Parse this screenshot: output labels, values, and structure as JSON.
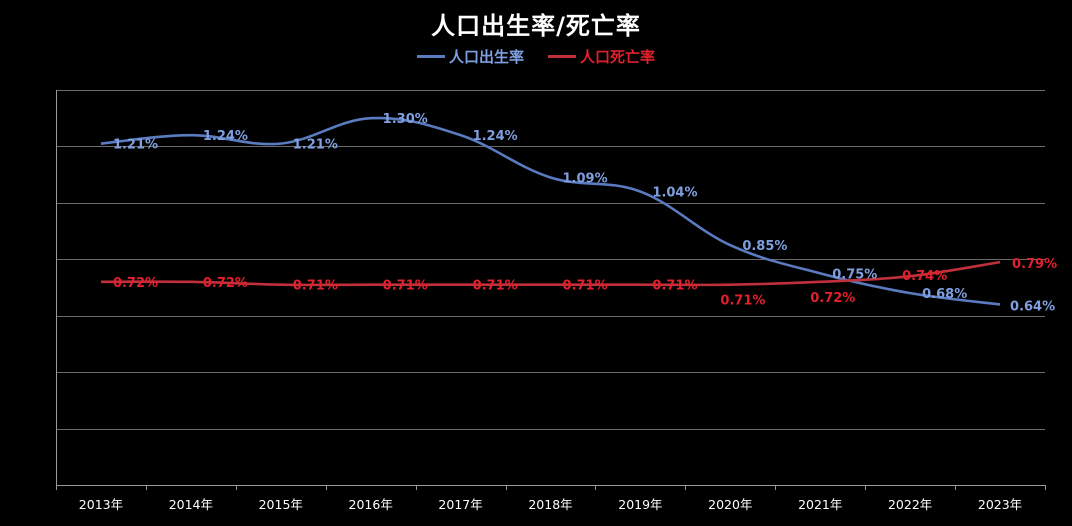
{
  "colors": {
    "background": "#000000",
    "birth": "#5a7bbf",
    "death": "#c0303b",
    "birth_label": "#7f9fe0",
    "death_label": "#e0202c",
    "grid": "#6a6a6a",
    "axis": "#9a9a9a",
    "text": "#ffffff"
  },
  "chart_data": {
    "type": "line",
    "title": "人口出生率/死亡率",
    "categories": [
      "2013年",
      "2014年",
      "2015年",
      "2016年",
      "2017年",
      "2018年",
      "2019年",
      "2020年",
      "2021年",
      "2022年",
      "2023年"
    ],
    "series": [
      {
        "name": "人口出生率",
        "values": [
          1.21,
          1.24,
          1.21,
          1.3,
          1.24,
          1.09,
          1.04,
          0.85,
          0.75,
          0.68,
          0.64
        ],
        "labels": [
          "1.21%",
          "1.24%",
          "1.21%",
          "1.30%",
          "1.24%",
          "1.09%",
          "1.04%",
          "0.85%",
          "0.75%",
          "0.68%",
          "0.64%"
        ]
      },
      {
        "name": "人口死亡率",
        "values": [
          0.72,
          0.72,
          0.71,
          0.71,
          0.71,
          0.71,
          0.71,
          0.71,
          0.72,
          0.74,
          0.79
        ],
        "labels": [
          "0.72%",
          "0.72%",
          "0.71%",
          "0.71%",
          "0.71%",
          "0.71%",
          "0.71%",
          "0.71%",
          "0.72%",
          "0.74%",
          "0.79%"
        ]
      }
    ],
    "ylim": [
      0,
      1.4
    ],
    "grid": true,
    "legend_position": "top-center",
    "y_tick_labels_visible": false
  }
}
